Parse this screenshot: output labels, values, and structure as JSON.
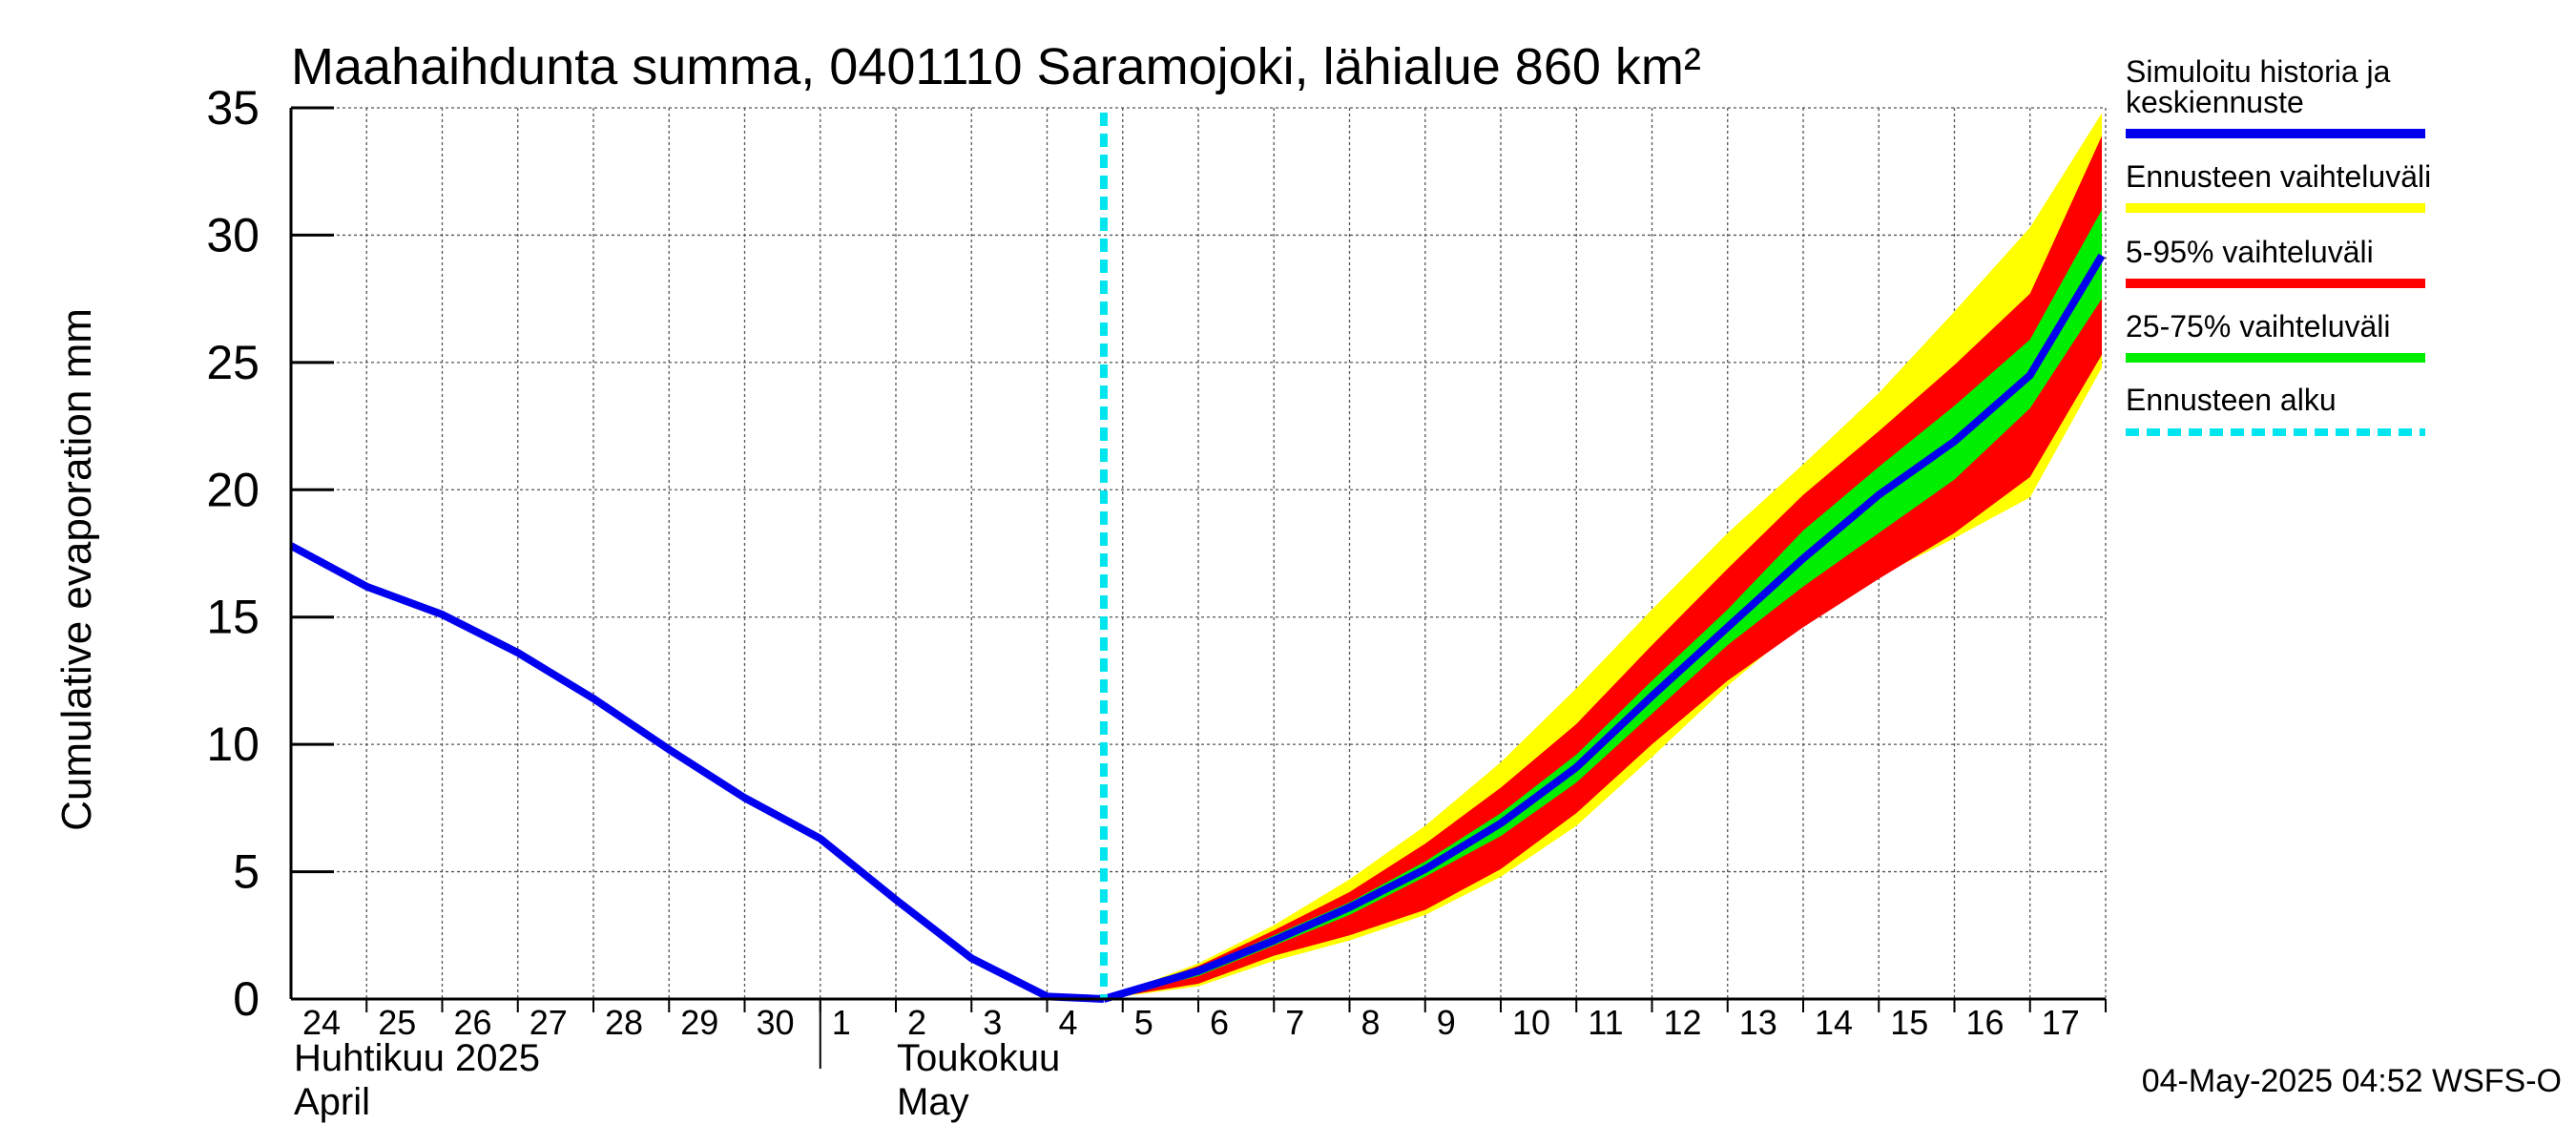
{
  "chart_data": {
    "type": "area",
    "title": "Maahaihdunta summa, 0401110 Saramojoki, lähialue 860 km²",
    "ylabel": "Cumulative evaporation   mm",
    "xlabel": "",
    "ylim": [
      0,
      35
    ],
    "yticks": [
      0,
      5,
      10,
      15,
      20,
      25,
      30,
      35
    ],
    "grid": true,
    "day_labels": [
      "24",
      "25",
      "26",
      "27",
      "28",
      "29",
      "30",
      "1",
      "2",
      "3",
      "4",
      "5",
      "6",
      "7",
      "8",
      "9",
      "10",
      "11",
      "12",
      "13",
      "14",
      "15",
      "16",
      "17"
    ],
    "month_labels": [
      {
        "line1": "Huhtikuu  2025",
        "line2": "April"
      },
      {
        "line1": "Toukokuu",
        "line2": "May"
      }
    ],
    "forecast_start_day": 10.75,
    "history": {
      "name": "Simuloitu historia ja keskiennuste",
      "x": [
        0,
        1,
        2,
        3,
        4,
        5,
        6,
        7,
        8,
        9,
        10,
        10.75
      ],
      "values": [
        17.8,
        16.2,
        15.1,
        13.6,
        11.8,
        9.8,
        7.9,
        6.3,
        3.9,
        1.6,
        0.1,
        0.0
      ]
    },
    "forecast_x": [
      10.75,
      12,
      13,
      14,
      15,
      16,
      17,
      18,
      19,
      20,
      21,
      22,
      23,
      23.95
    ],
    "series": [
      {
        "name": "Ennusteen vaihteluväli",
        "color": "#ffff00",
        "upper": [
          0,
          1.4,
          2.9,
          4.7,
          6.8,
          9.3,
          12.2,
          15.3,
          18.3,
          21.0,
          23.8,
          27.0,
          30.3,
          34.8
        ],
        "lower": [
          0,
          0.5,
          1.5,
          2.3,
          3.3,
          4.8,
          6.8,
          9.5,
          12.3,
          14.8,
          16.6,
          18.1,
          19.7,
          24.8
        ]
      },
      {
        "name": "5-95% vaihteluväli",
        "color": "#ff0000",
        "upper": [
          0,
          1.3,
          2.7,
          4.2,
          6.1,
          8.3,
          10.8,
          13.9,
          16.9,
          19.8,
          22.3,
          24.9,
          27.7,
          33.9
        ],
        "lower": [
          0,
          0.6,
          1.7,
          2.5,
          3.5,
          5.1,
          7.3,
          10.0,
          12.5,
          14.6,
          16.5,
          18.3,
          20.5,
          25.3
        ]
      },
      {
        "name": "25-75% vaihteluväli",
        "color": "#00ee00",
        "upper": [
          0,
          1.2,
          2.5,
          3.8,
          5.4,
          7.3,
          9.6,
          12.5,
          15.3,
          18.4,
          20.9,
          23.3,
          25.9,
          31.0
        ],
        "lower": [
          0,
          0.9,
          2.1,
          3.3,
          4.8,
          6.4,
          8.5,
          11.2,
          13.9,
          16.2,
          18.3,
          20.4,
          23.2,
          27.5
        ]
      },
      {
        "name": "Simuloitu historia ja keskiennuste",
        "color": "#0000ee",
        "values": [
          0,
          1.1,
          2.3,
          3.6,
          5.1,
          6.9,
          9.1,
          11.9,
          14.6,
          17.3,
          19.8,
          21.9,
          24.5,
          29.2
        ]
      }
    ],
    "legend": [
      {
        "label": "Simuloitu historia ja keskiennuste",
        "color": "#0000ee",
        "style": "line"
      },
      {
        "label": "Ennusteen vaihteluväli",
        "color": "#ffff00",
        "style": "line"
      },
      {
        "label": "5-95% vaihteluväli",
        "color": "#ff0000",
        "style": "line"
      },
      {
        "label": "25-75% vaihteluväli",
        "color": "#00ee00",
        "style": "line"
      },
      {
        "label": "Ennusteen alku",
        "color": "#00e5ee",
        "style": "dashed"
      }
    ],
    "legend_position": "right",
    "legend_first_lines": [
      "Simuloitu historia ja",
      "keskiennuste"
    ],
    "timestamp": "04-May-2025 04:52 WSFS-O"
  }
}
